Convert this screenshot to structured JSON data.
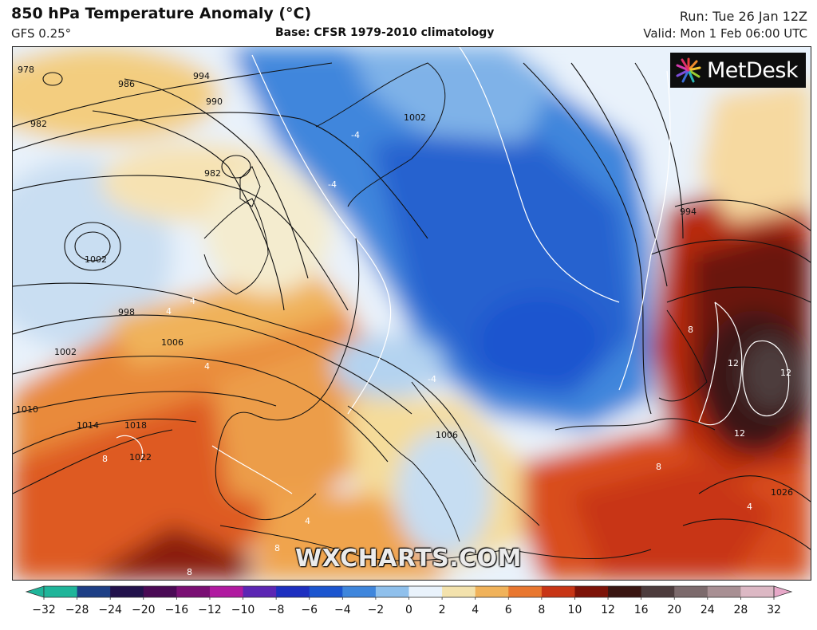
{
  "header": {
    "title": "850 hPa Temperature Anomaly (°C)",
    "model": "GFS 0.25°",
    "base": "Base: CFSR 1979-2010 climatology",
    "run": "Run: Tue 26 Jan 12Z",
    "valid": "Valid: Mon 1 Feb 06:00 UTC"
  },
  "branding": {
    "logo_text": "MetDesk",
    "watermark": "WXCHARTS.COM"
  },
  "colorbar": {
    "ticks": [
      "−32",
      "−28",
      "−24",
      "−20",
      "−16",
      "−12",
      "−10",
      "−8",
      "−6",
      "−4",
      "−2",
      "0",
      "2",
      "4",
      "6",
      "8",
      "10",
      "12",
      "16",
      "20",
      "24",
      "28",
      "32"
    ],
    "colors": [
      "#1fb59a",
      "#1d3f86",
      "#22124c",
      "#4a0a55",
      "#7a0f74",
      "#b01aa0",
      "#5c26b4",
      "#1d2fc0",
      "#1b55cf",
      "#3f86dc",
      "#8fc0ec",
      "#e9f2fb",
      "#f3e2ad",
      "#f0b25a",
      "#e9772f",
      "#c83515",
      "#7d1308",
      "#3a1612",
      "#4d3c3d",
      "#7c6a6c",
      "#a88f93",
      "#dcb8c4"
    ],
    "cap_low_color": "#1fb59a",
    "cap_high_color": "#e7a8c8"
  },
  "isobar_labels": [
    "986",
    "990",
    "994",
    "982",
    "982",
    "978",
    "998",
    "1002",
    "1006",
    "1010",
    "1014",
    "1018",
    "1022",
    "1002",
    "994",
    "1026",
    "1006",
    "1002"
  ],
  "anomaly_labels": [
    "-4",
    "-4",
    "4",
    "4",
    "4",
    "4",
    "8",
    "8",
    "8",
    "8",
    "12",
    "12",
    "12",
    "8",
    "-4",
    "4"
  ]
}
